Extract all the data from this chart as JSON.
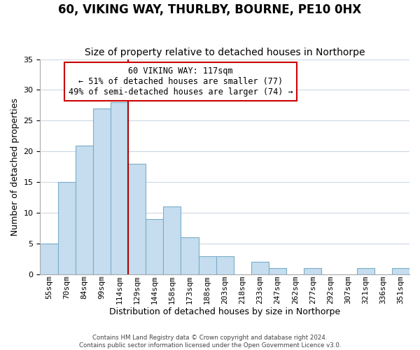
{
  "title": "60, VIKING WAY, THURLBY, BOURNE, PE10 0HX",
  "subtitle": "Size of property relative to detached houses in Northorpe",
  "xlabel": "Distribution of detached houses by size in Northorpe",
  "ylabel": "Number of detached properties",
  "categories": [
    "55sqm",
    "70sqm",
    "84sqm",
    "99sqm",
    "114sqm",
    "129sqm",
    "144sqm",
    "158sqm",
    "173sqm",
    "188sqm",
    "203sqm",
    "218sqm",
    "233sqm",
    "247sqm",
    "262sqm",
    "277sqm",
    "292sqm",
    "307sqm",
    "321sqm",
    "336sqm",
    "351sqm"
  ],
  "values": [
    5,
    15,
    21,
    27,
    28,
    18,
    9,
    11,
    6,
    3,
    3,
    0,
    2,
    1,
    0,
    1,
    0,
    0,
    1,
    0,
    1
  ],
  "bar_color": "#c5ddef",
  "bar_edge_color": "#7aadc8",
  "vline_x": 4.5,
  "vline_color": "#aa0000",
  "ylim": [
    0,
    35
  ],
  "yticks": [
    0,
    5,
    10,
    15,
    20,
    25,
    30,
    35
  ],
  "ann_line1": "60 VIKING WAY: 117sqm",
  "ann_line2": "← 51% of detached houses are smaller (77)",
  "ann_line3": "49% of semi-detached houses are larger (74) →",
  "footer1": "Contains HM Land Registry data © Crown copyright and database right 2024.",
  "footer2": "Contains public sector information licensed under the Open Government Licence v3.0.",
  "background_color": "#ffffff",
  "grid_color": "#ccd9e5",
  "title_fontsize": 12,
  "subtitle_fontsize": 10,
  "axis_label_fontsize": 9,
  "tick_fontsize": 8
}
